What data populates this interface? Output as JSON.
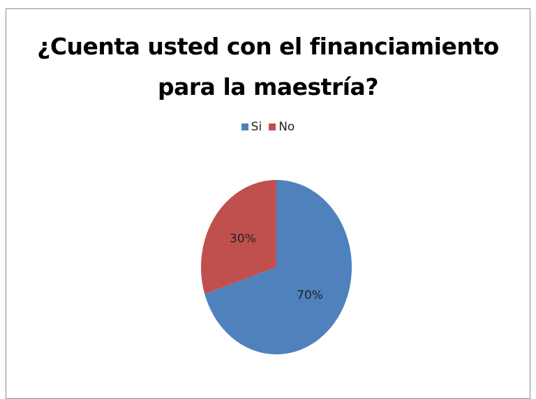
{
  "chart_data": {
    "type": "pie",
    "title_line1": "¿Cuenta usted con el financiamiento",
    "title_line2": "para la maestría?",
    "categories": [
      "Si",
      "No"
    ],
    "values": [
      70,
      30
    ],
    "labels": [
      "70%",
      "30%"
    ],
    "colors": [
      "#4f81bd",
      "#c0504d"
    ],
    "legend_position": "top"
  }
}
